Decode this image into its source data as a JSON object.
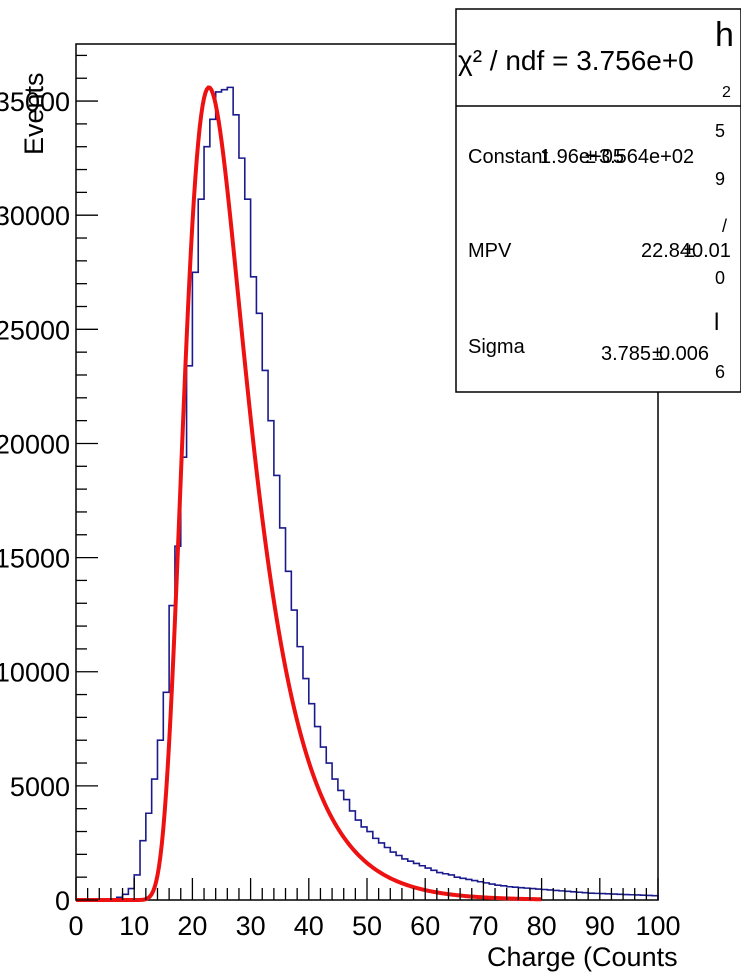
{
  "chart_data": {
    "type": "histogram",
    "title": "",
    "xlabel": "Charge (Counts",
    "ylabel": "Events",
    "xlim": [
      0,
      100
    ],
    "ylim": [
      0,
      37500
    ],
    "x_ticks": [
      "0",
      "10",
      "20",
      "30",
      "40",
      "50",
      "60",
      "70",
      "80",
      "90",
      "100"
    ],
    "y_ticks": [
      "0",
      "5000",
      "10000",
      "15000",
      "20000",
      "25000",
      "30000",
      "35000"
    ],
    "histogram": {
      "bin_width": 1,
      "x_start": 0,
      "color": "#1a1a8c",
      "counts": [
        0,
        0,
        0,
        0,
        0,
        0,
        50,
        120,
        250,
        500,
        1100,
        2600,
        3800,
        5300,
        7000,
        9100,
        12900,
        15500,
        19400,
        23400,
        27500,
        30700,
        33000,
        34200,
        35400,
        35500,
        35600,
        34400,
        32500,
        30700,
        27300,
        25700,
        23200,
        21000,
        18600,
        16300,
        14400,
        12700,
        11100,
        9700,
        8600,
        7600,
        6700,
        6000,
        5300,
        4800,
        4400,
        3900,
        3500,
        3200,
        3000,
        2700,
        2500,
        2300,
        2100,
        1950,
        1800,
        1700,
        1600,
        1500,
        1400,
        1300,
        1200,
        1150,
        1100,
        1000,
        950,
        900,
        850,
        800,
        750,
        700,
        650,
        620,
        580,
        560,
        540,
        520,
        500,
        480,
        460,
        440,
        420,
        400,
        380,
        360,
        340,
        320,
        300,
        290,
        280,
        270,
        260,
        250,
        240,
        230,
        220,
        210,
        200,
        190
      ]
    },
    "fit": {
      "color": "#ee1111",
      "function": "Landau",
      "x_range": [
        0,
        80
      ],
      "constant": 196000,
      "mpv": 22.84,
      "sigma": 3.785
    },
    "stats_box": {
      "chi2_label": "χ² / ndf = 3.756e+0",
      "rows": [
        {
          "name": "Constant",
          "value": "1.96e+05",
          "sep": "±",
          "error": "3.564e+02"
        },
        {
          "name": "MPV",
          "value": "22.84",
          "sep": "±",
          "error": "0.01"
        },
        {
          "name": "Sigma",
          "value": "3.785",
          "sep": "±",
          "error": "0.006"
        }
      ],
      "bleed_glyphs": [
        "h",
        "2",
        "5",
        "9",
        "/",
        "0",
        "l",
        "6"
      ]
    },
    "grid": false,
    "legend": "stats box top-right"
  }
}
